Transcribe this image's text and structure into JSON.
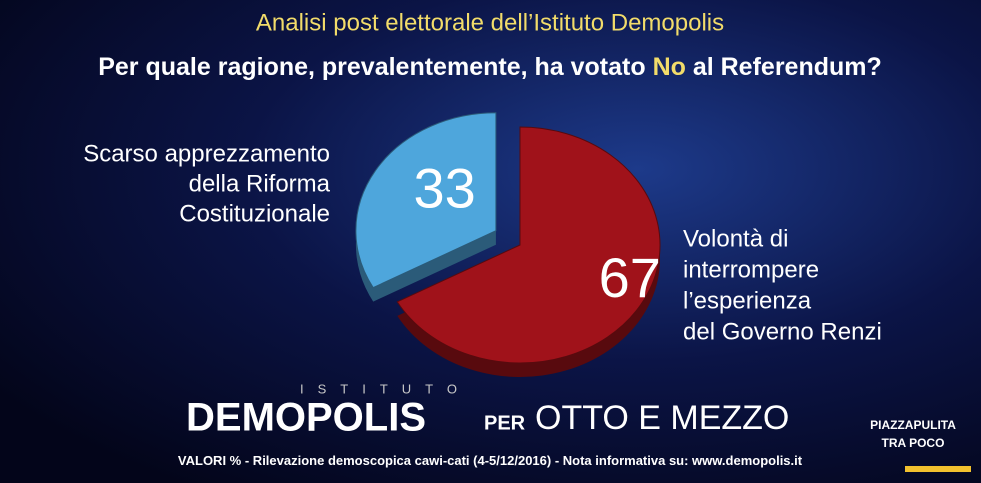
{
  "chart_data": {
    "type": "pie",
    "title": "Analisi post elettorale dell’Istituto Demopolis",
    "subtitle": [
      "Per quale ragione, prevalentemente, ha votato ",
      "No",
      " al Referendum?"
    ],
    "categories": [
      [
        "Scarso apprezzamento",
        "della Riforma",
        "Costituzionale"
      ],
      [
        "Volontà di",
        "interrompere",
        "l’esperienza",
        "del Governo Renzi"
      ]
    ],
    "values": [
      33,
      67
    ],
    "colors": [
      "#4ea6dc",
      "#a0121a"
    ],
    "footer": {
      "brand_top": "ISTITUTO",
      "brand": "DEMOPOLIS",
      "per": "PER",
      "show": "OTTO E MEZZO",
      "note_bold": "VALORI %",
      "note": "- Rilevazione demoscopica cawi-cati (4-5/12/2016) - Nota informativa su: www.demopolis.it",
      "promo": [
        "PIAZZAPULITA",
        "TRA POCO"
      ]
    }
  }
}
